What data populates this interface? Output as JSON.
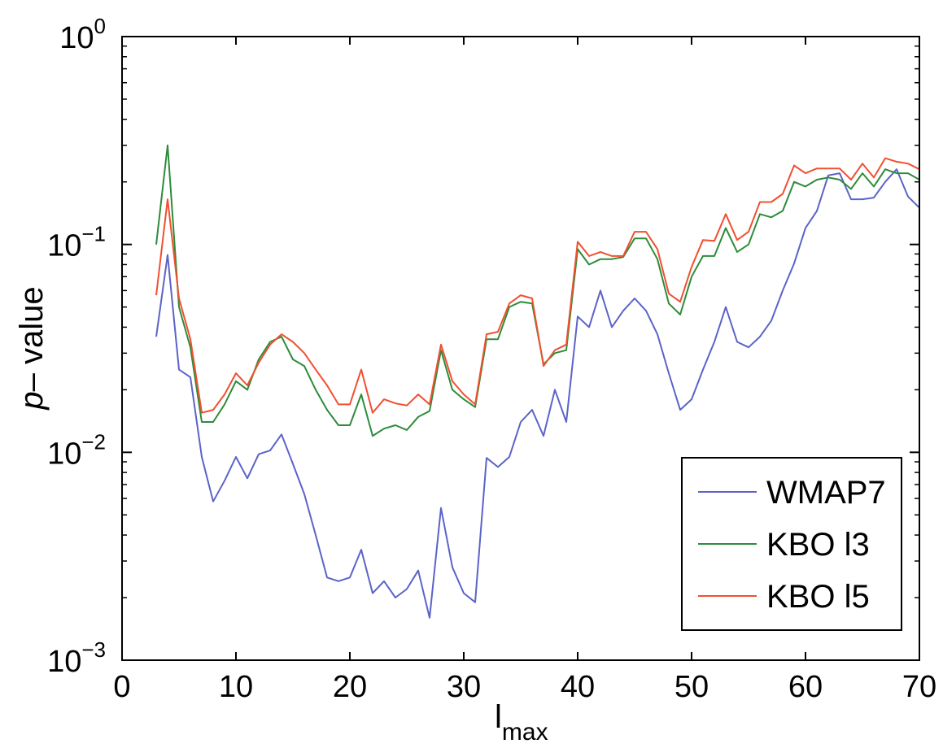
{
  "chart_data": {
    "type": "line",
    "title": "",
    "xlabel": "l",
    "xlabel_sub": "max",
    "ylabel": "p– value",
    "ylabel_italic": "p",
    "ylabel_rest": "– value",
    "xlim": [
      0,
      70
    ],
    "ylim": [
      0.001,
      1
    ],
    "yscale": "log",
    "grid": false,
    "legend_position": "bottom-right",
    "x_ticks": [
      0,
      10,
      20,
      30,
      40,
      50,
      60,
      70
    ],
    "x_tick_labels": [
      "0",
      "10",
      "20",
      "30",
      "40",
      "50",
      "60",
      "70"
    ],
    "y_ticks": [
      0.001,
      0.01,
      0.1,
      1
    ],
    "y_tick_base": "10",
    "y_tick_exponents": [
      "−3",
      "−2",
      "−1",
      "0"
    ],
    "x": [
      3,
      4,
      5,
      6,
      7,
      8,
      9,
      10,
      11,
      12,
      13,
      14,
      15,
      16,
      17,
      18,
      19,
      20,
      21,
      22,
      23,
      24,
      25,
      26,
      27,
      28,
      29,
      30,
      31,
      32,
      33,
      34,
      35,
      36,
      37,
      38,
      39,
      40,
      41,
      42,
      43,
      44,
      45,
      46,
      47,
      48,
      49,
      50,
      51,
      52,
      53,
      54,
      55,
      56,
      57,
      58,
      59,
      60,
      61,
      62,
      63,
      64,
      65,
      66,
      67,
      68,
      69,
      70
    ],
    "series": [
      {
        "name": "WMAP7",
        "color": "#5b63c8",
        "values": [
          0.036,
          0.089,
          0.025,
          0.023,
          0.0095,
          0.0058,
          0.0073,
          0.0095,
          0.0075,
          0.0098,
          0.0102,
          0.0122,
          0.0088,
          0.0063,
          0.004,
          0.0025,
          0.0024,
          0.0025,
          0.0034,
          0.0021,
          0.0024,
          0.002,
          0.0022,
          0.0027,
          0.0016,
          0.0054,
          0.0028,
          0.0021,
          0.0019,
          0.0094,
          0.0085,
          0.0095,
          0.014,
          0.016,
          0.012,
          0.02,
          0.014,
          0.045,
          0.04,
          0.06,
          0.04,
          0.048,
          0.055,
          0.048,
          0.037,
          0.024,
          0.016,
          0.018,
          0.025,
          0.034,
          0.05,
          0.034,
          0.032,
          0.036,
          0.043,
          0.06,
          0.081,
          0.12,
          0.145,
          0.215,
          0.22,
          0.165,
          0.165,
          0.168,
          0.2,
          0.23,
          0.17,
          0.15
        ]
      },
      {
        "name": "KBO l3",
        "color": "#2e8b3a",
        "values": [
          0.1,
          0.3,
          0.05,
          0.032,
          0.014,
          0.014,
          0.017,
          0.022,
          0.02,
          0.028,
          0.034,
          0.036,
          0.028,
          0.026,
          0.02,
          0.016,
          0.0135,
          0.0135,
          0.019,
          0.012,
          0.013,
          0.0135,
          0.0128,
          0.0148,
          0.0158,
          0.031,
          0.02,
          0.018,
          0.0165,
          0.035,
          0.035,
          0.05,
          0.053,
          0.052,
          0.0265,
          0.03,
          0.031,
          0.095,
          0.08,
          0.085,
          0.085,
          0.087,
          0.107,
          0.107,
          0.085,
          0.052,
          0.046,
          0.07,
          0.088,
          0.088,
          0.12,
          0.092,
          0.1,
          0.14,
          0.135,
          0.145,
          0.2,
          0.19,
          0.205,
          0.21,
          0.205,
          0.185,
          0.22,
          0.19,
          0.23,
          0.22,
          0.22,
          0.205
        ]
      },
      {
        "name": "KBO l5",
        "color": "#f05030",
        "values": [
          0.057,
          0.165,
          0.055,
          0.035,
          0.0155,
          0.016,
          0.019,
          0.024,
          0.021,
          0.027,
          0.033,
          0.037,
          0.034,
          0.03,
          0.025,
          0.021,
          0.017,
          0.017,
          0.025,
          0.0155,
          0.018,
          0.0172,
          0.0168,
          0.019,
          0.017,
          0.033,
          0.022,
          0.019,
          0.017,
          0.037,
          0.038,
          0.052,
          0.057,
          0.055,
          0.026,
          0.031,
          0.033,
          0.103,
          0.088,
          0.092,
          0.088,
          0.088,
          0.115,
          0.115,
          0.095,
          0.058,
          0.053,
          0.078,
          0.105,
          0.104,
          0.14,
          0.105,
          0.115,
          0.16,
          0.16,
          0.175,
          0.24,
          0.22,
          0.232,
          0.232,
          0.232,
          0.205,
          0.245,
          0.21,
          0.26,
          0.25,
          0.245,
          0.23
        ]
      }
    ]
  }
}
